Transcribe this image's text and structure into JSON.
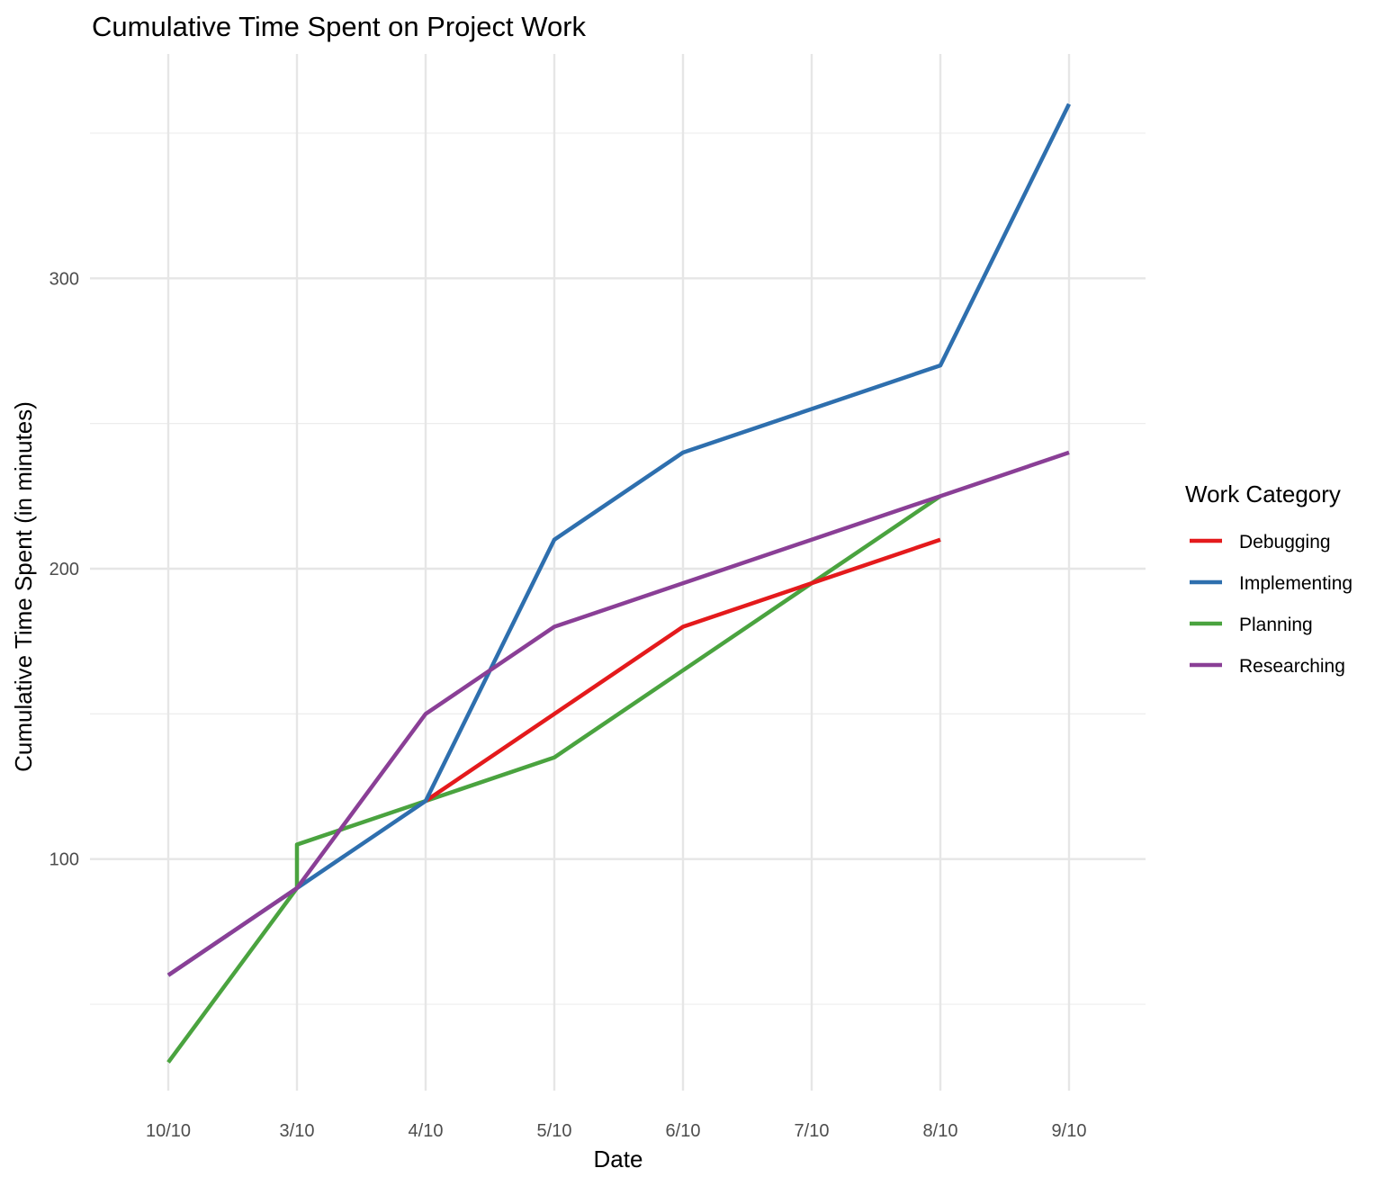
{
  "chart_data": {
    "type": "line",
    "title": "Cumulative Time Spent on Project Work",
    "xlabel": "Date",
    "ylabel": "Cumulative Time Spent (in minutes)",
    "categories": [
      "10/10",
      "3/10",
      "4/10",
      "5/10",
      "6/10",
      "7/10",
      "8/10",
      "9/10"
    ],
    "y_ticks": [
      100,
      200,
      300
    ],
    "y_minor_ticks": [
      50,
      150,
      250,
      350
    ],
    "ylim": [
      22,
      382
    ],
    "grid": true,
    "legend": {
      "title": "Work Category",
      "position": "right"
    },
    "series": [
      {
        "name": "Debugging",
        "color": "#e41a1c",
        "points": [
          {
            "x": "4/10",
            "y": 120
          },
          {
            "x": "5/10",
            "y": 150
          },
          {
            "x": "6/10",
            "y": 180
          },
          {
            "x": "7/10",
            "y": 195
          },
          {
            "x": "8/10",
            "y": 210
          }
        ]
      },
      {
        "name": "Implementing",
        "color": "#2e6fae",
        "points": [
          {
            "x": "10/10",
            "y": 60
          },
          {
            "x": "3/10",
            "y": 90
          },
          {
            "x": "4/10",
            "y": 120
          },
          {
            "x": "5/10",
            "y": 210
          },
          {
            "x": "6/10",
            "y": 240
          },
          {
            "x": "7/10",
            "y": 255
          },
          {
            "x": "8/10",
            "y": 270
          },
          {
            "x": "9/10",
            "y": 360
          }
        ]
      },
      {
        "name": "Planning",
        "color": "#4aa33f",
        "points": [
          {
            "x": "10/10",
            "y": 30
          },
          {
            "x": "3/10",
            "y": 90
          },
          {
            "x": "3/10",
            "y": 105
          },
          {
            "x": "4/10",
            "y": 120
          },
          {
            "x": "5/10",
            "y": 135
          },
          {
            "x": "6/10",
            "y": 165
          },
          {
            "x": "7/10",
            "y": 195
          },
          {
            "x": "8/10",
            "y": 225
          }
        ]
      },
      {
        "name": "Researching",
        "color": "#8a3f96",
        "points": [
          {
            "x": "10/10",
            "y": 60
          },
          {
            "x": "3/10",
            "y": 90
          },
          {
            "x": "4/10",
            "y": 150
          },
          {
            "x": "5/10",
            "y": 180
          },
          {
            "x": "6/10",
            "y": 195
          },
          {
            "x": "7/10",
            "y": 210
          },
          {
            "x": "8/10",
            "y": 225
          },
          {
            "x": "9/10",
            "y": 240
          }
        ]
      }
    ]
  }
}
